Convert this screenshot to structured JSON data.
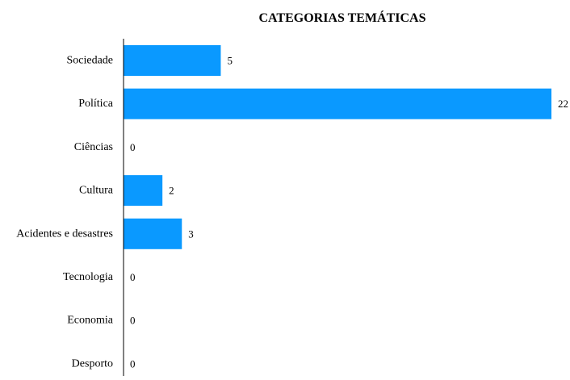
{
  "chart_data": {
    "type": "bar",
    "orientation": "horizontal",
    "title": "CATEGORIAS TEMÁTICAS",
    "xlabel": "",
    "ylabel": "",
    "categories": [
      "Sociedade",
      "Política",
      "Ciências",
      "Cultura",
      "Acidentes e desastres",
      "Tecnologia",
      "Economia",
      "Desporto"
    ],
    "values": [
      5,
      22,
      0,
      2,
      3,
      0,
      0,
      0
    ],
    "xlim": [
      0,
      22
    ],
    "grid": false,
    "legend": "none",
    "data_labels": true,
    "bar_color": "#0a99ff",
    "axis_color": "#000000"
  }
}
